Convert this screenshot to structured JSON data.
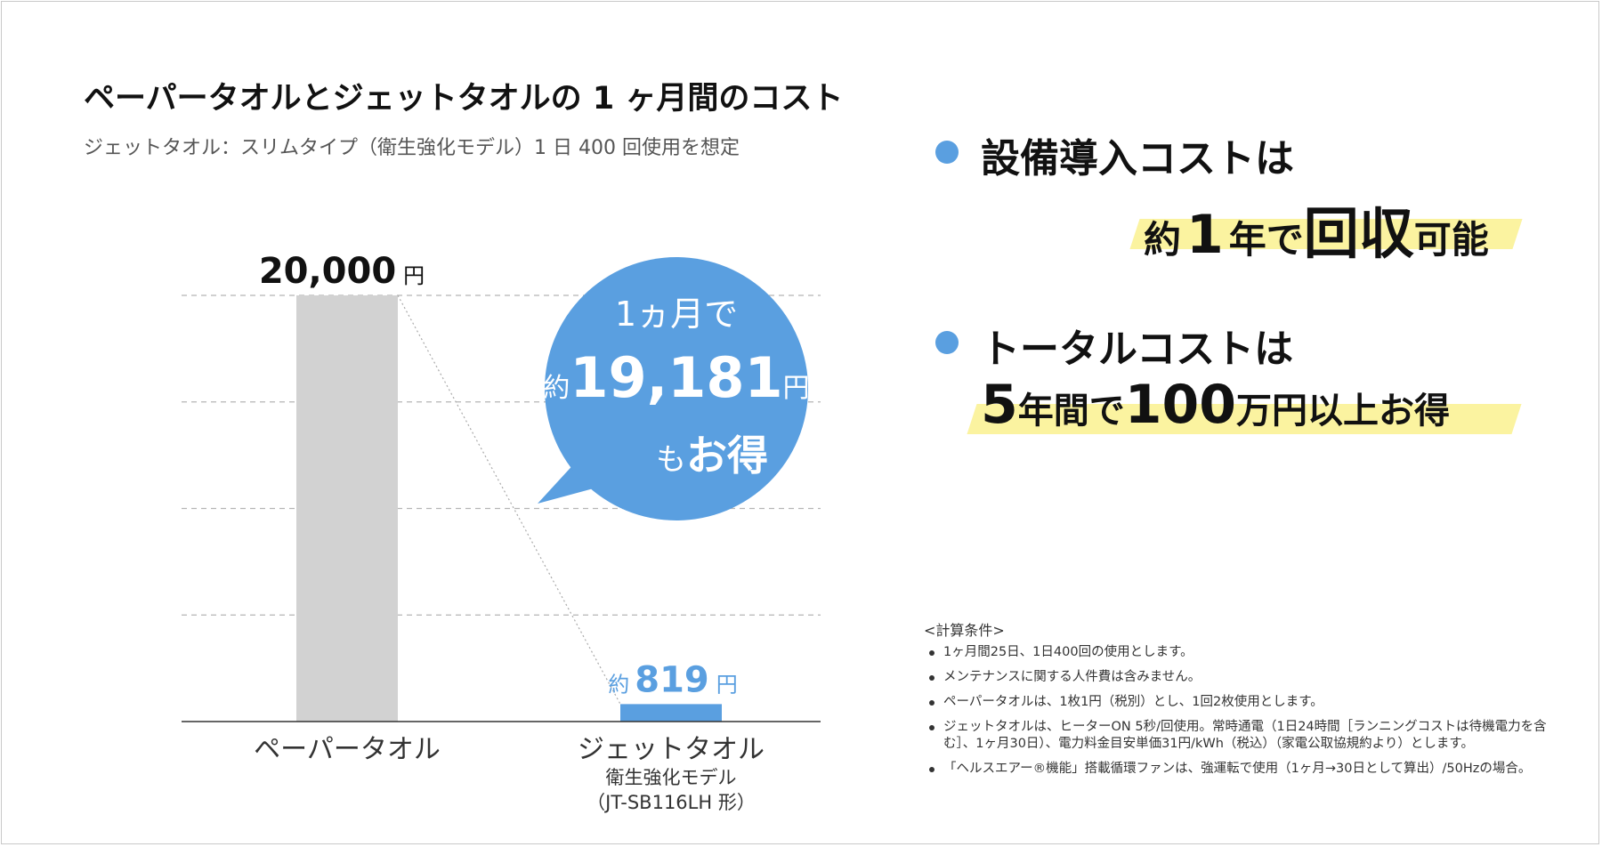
{
  "title": "ペーパータオルとジェットタオルの 1 ヶ月間のコスト",
  "subtitle": "ジェットタオル：スリムタイプ（衛生強化モデル）1 日 400 回使用を想定",
  "chart_data": {
    "type": "bar",
    "categories": [
      "ペーパータオル",
      "ジェットタオル"
    ],
    "category_sublabels": [
      "",
      "衛生強化モデル"
    ],
    "category_sublabels2": [
      "",
      "（JT-SB116LH 形）"
    ],
    "values": [
      20000,
      819
    ],
    "value_labels": [
      "20,000",
      "819"
    ],
    "value_prefixes": [
      "",
      "約"
    ],
    "unit": "円",
    "ylim": [
      0,
      20000
    ],
    "grid": true,
    "bar_colors": [
      "#d2d2d2",
      "#5a9fe0"
    ]
  },
  "bubble": {
    "line1": "1ヵ月で",
    "prefix": "約",
    "amount": "19,181",
    "unit": "円",
    "suffix_small": "も",
    "suffix_big": "お得",
    "color": "#5a9fe0"
  },
  "points": [
    {
      "head": "設備導入コストは",
      "parts": [
        "約",
        "1",
        "年で",
        "回収",
        "可能"
      ]
    },
    {
      "head": "トータルコストは",
      "parts": [
        "5",
        "年間で",
        "100",
        "万円以上お得"
      ]
    }
  ],
  "conditions": {
    "title": "<計算条件>",
    "items": [
      "1ヶ月間25日、1日400回の使用とします。",
      "メンテナンスに関する人件費は含みません。",
      "ペーパータオルは、1枚1円（税別）とし、1回2枚使用とします。",
      "ジェットタオルは、ヒーターON 5秒/回使用。常時通電（1日24時間［ランニングコストは待機電力を含む］、1ヶ月30日）、電力料金目安単価31円/kWh（税込）（家電公取協規約より）とします。",
      "「ヘルスエアー®機能」搭載循環ファンは、強運転で使用（1ヶ月→30日として算出）/50Hzの場合。"
    ]
  },
  "colors": {
    "accent": "#5a9fe0",
    "highlight": "#fbf3a0",
    "bar_gray": "#d2d2d2"
  }
}
